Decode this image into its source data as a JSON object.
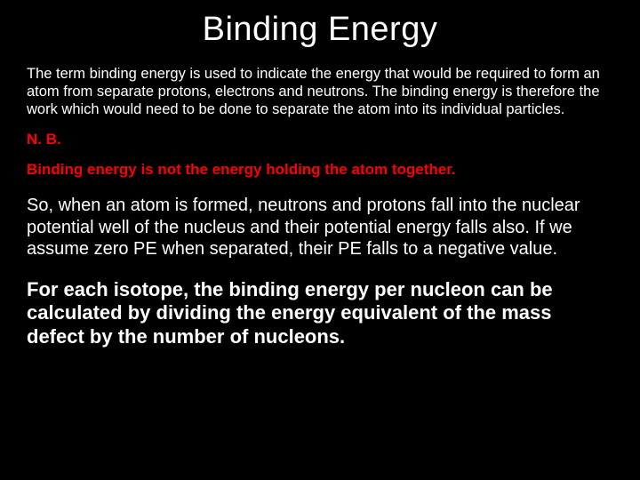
{
  "slide": {
    "title": "Binding Energy",
    "para1": "The term binding energy is used to indicate the energy that would be required to form an atom from separate protons, electrons and neutrons. The binding energy is therefore the work which would need to be done to separate the atom into its individual particles.",
    "nb": "N. B.",
    "para2": "Binding energy is not the energy holding the atom together.",
    "para3": "So, when an atom is formed, neutrons and protons fall into the nuclear potential well of the nucleus and their potential energy falls also. If we assume zero PE when separated, their PE falls to a negative value.",
    "para4": "For each isotope, the binding energy per nucleon can be calculated by dividing the energy equivalent of the mass defect by the number of nucleons."
  },
  "colors": {
    "background": "#000000",
    "text": "#ffffff",
    "accent": "#ff0000"
  },
  "typography": {
    "title_fontsize": 38,
    "para1_fontsize": 16.5,
    "nb_fontsize": 17,
    "para2_fontsize": 17,
    "para3_fontsize": 20,
    "para4_fontsize": 22,
    "font_family": "Arial"
  }
}
